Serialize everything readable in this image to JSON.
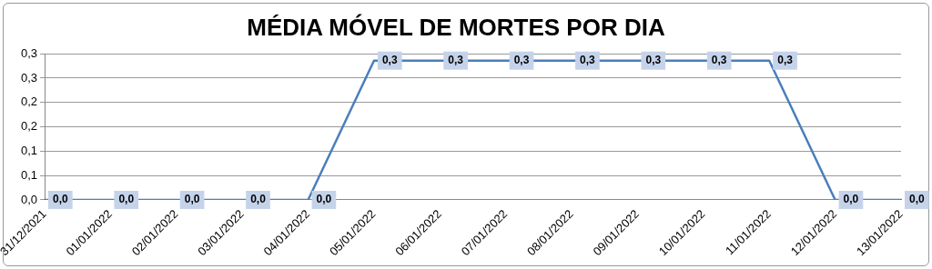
{
  "chart_data": {
    "type": "line",
    "title": "MÉDIA MÓVEL DE MORTES POR DIA",
    "categories": [
      "31/12/2021",
      "01/01/2022",
      "02/01/2022",
      "03/01/2022",
      "04/01/2022",
      "05/01/2022",
      "06/01/2022",
      "07/01/2022",
      "08/01/2022",
      "09/01/2022",
      "10/01/2022",
      "11/01/2022",
      "12/01/2022",
      "13/01/2022"
    ],
    "series": [
      {
        "color": "#4a7ebb",
        "values": [
          0,
          0,
          0,
          0,
          0,
          0.286,
          0.286,
          0.286,
          0.286,
          0.286,
          0.286,
          0.286,
          0,
          0
        ],
        "value_labels": [
          "0,0",
          "0,0",
          "0,0",
          "0,0",
          "0,0",
          "0,3",
          "0,3",
          "0,3",
          "0,3",
          "0,3",
          "0,3",
          "0,3",
          "0,0",
          "0,0"
        ]
      }
    ],
    "ylim": [
      0,
      0.3
    ],
    "yticks": [
      {
        "value": 0,
        "label": "0,0"
      },
      {
        "value": 0.05,
        "label": "0,1"
      },
      {
        "value": 0.1,
        "label": "0,1"
      },
      {
        "value": 0.15,
        "label": "0,2"
      },
      {
        "value": 0.2,
        "label": "0,2"
      },
      {
        "value": 0.25,
        "label": "0,3"
      },
      {
        "value": 0.3,
        "label": "0,3"
      }
    ],
    "grid": "y",
    "legend": false,
    "marker": "none",
    "line_style": "solid"
  }
}
